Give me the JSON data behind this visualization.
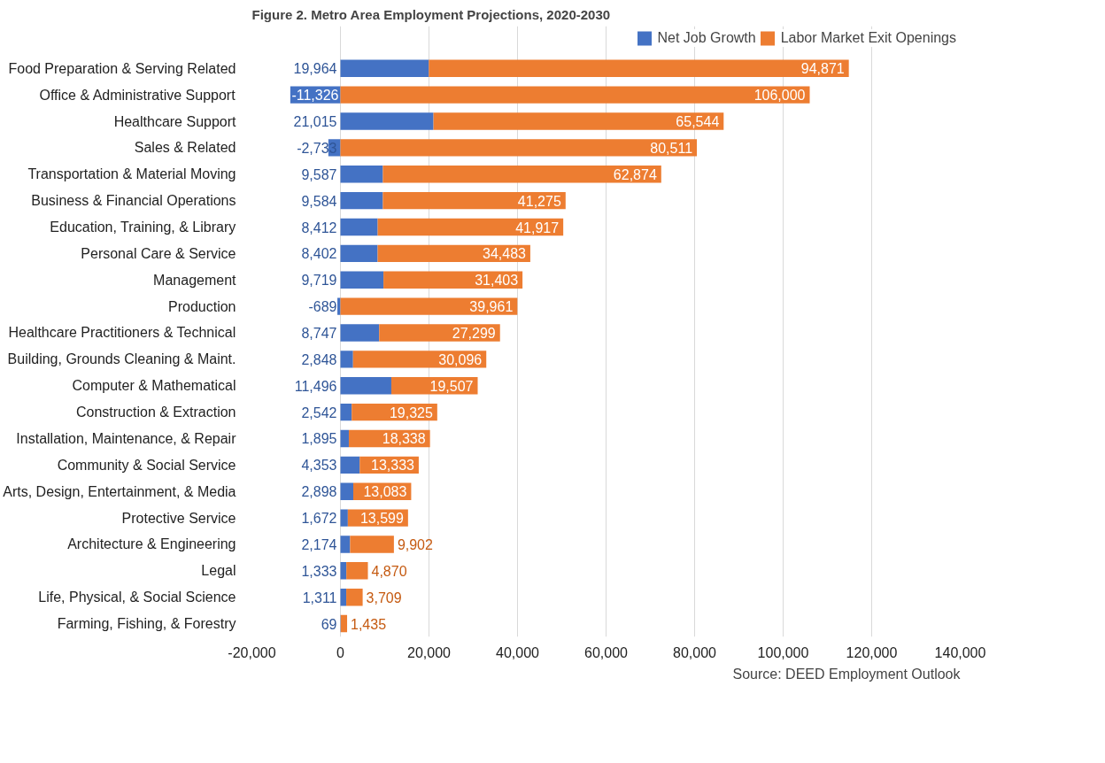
{
  "chart_data": {
    "type": "bar",
    "orientation": "horizontal",
    "stacked": true,
    "title": "Figure 2. Metro Area Employment Projections, 2020-2030",
    "categories": [
      "Food Preparation & Serving Related",
      "Office & Administrative Support",
      "Healthcare Support",
      "Sales & Related",
      "Transportation & Material Moving",
      "Business & Financial Operations",
      "Education, Training, & Library",
      "Personal Care & Service",
      "Management",
      "Production",
      "Healthcare Practitioners & Technical",
      "Building, Grounds Cleaning & Maint.",
      "Computer & Mathematical",
      "Construction & Extraction",
      "Installation, Maintenance, & Repair",
      "Community & Social Service",
      "Arts, Design, Entertainment, & Media",
      "Protective Service",
      "Architecture & Engineering",
      "Legal",
      "Life, Physical, & Social Science",
      "Farming, Fishing, & Forestry"
    ],
    "series": [
      {
        "name": "Net Job Growth",
        "color": "#4472c4",
        "values": [
          19964,
          -11326,
          21015,
          -2733,
          9587,
          9584,
          8412,
          8402,
          9719,
          -689,
          8747,
          2848,
          11496,
          2542,
          1895,
          4353,
          2898,
          1672,
          2174,
          1333,
          1311,
          69
        ],
        "value_labels": [
          "19,964",
          "-11,326",
          "21,015",
          "-2,733",
          "9,587",
          "9,584",
          "8,412",
          "8,402",
          "9,719",
          "-689",
          "8,747",
          "2,848",
          "11,496",
          "2,542",
          "1,895",
          "4,353",
          "2,898",
          "1,672",
          "2,174",
          "1,333",
          "1,311",
          "69"
        ]
      },
      {
        "name": "Labor Market Exit Openings",
        "color": "#ed7d31",
        "values": [
          94871,
          106000,
          65544,
          80511,
          62874,
          41275,
          41917,
          34483,
          31403,
          39961,
          27299,
          30096,
          19507,
          19325,
          18338,
          13333,
          13083,
          13599,
          9902,
          4870,
          3709,
          1435
        ],
        "value_labels": [
          "94,871",
          "106,000",
          "65,544",
          "80,511",
          "62,874",
          "41,275",
          "41,917",
          "34,483",
          "31,403",
          "39,961",
          "27,299",
          "30,096",
          "19,507",
          "19,325",
          "18,338",
          "13,333",
          "13,083",
          "13,599",
          "9,902",
          "4,870",
          "3,709",
          "1,435"
        ]
      }
    ],
    "xlim": [
      -20000,
      140000
    ],
    "xticks": [
      {
        "value": -20000,
        "label": "-20,000"
      },
      0,
      {
        "value": 20000,
        "label": "20,000"
      },
      {
        "value": 40000,
        "label": "40,000"
      },
      {
        "value": 60000,
        "label": "60,000"
      },
      {
        "value": 80000,
        "label": "80,000"
      },
      {
        "value": 100000,
        "label": "100,000"
      },
      {
        "value": 120000,
        "label": "120,000"
      },
      {
        "value": 140000,
        "label": "140,000"
      }
    ],
    "grid": "x",
    "legend": "top right",
    "data_labels": true,
    "annotations": [
      "Source: DEED Employment Outlook"
    ]
  }
}
